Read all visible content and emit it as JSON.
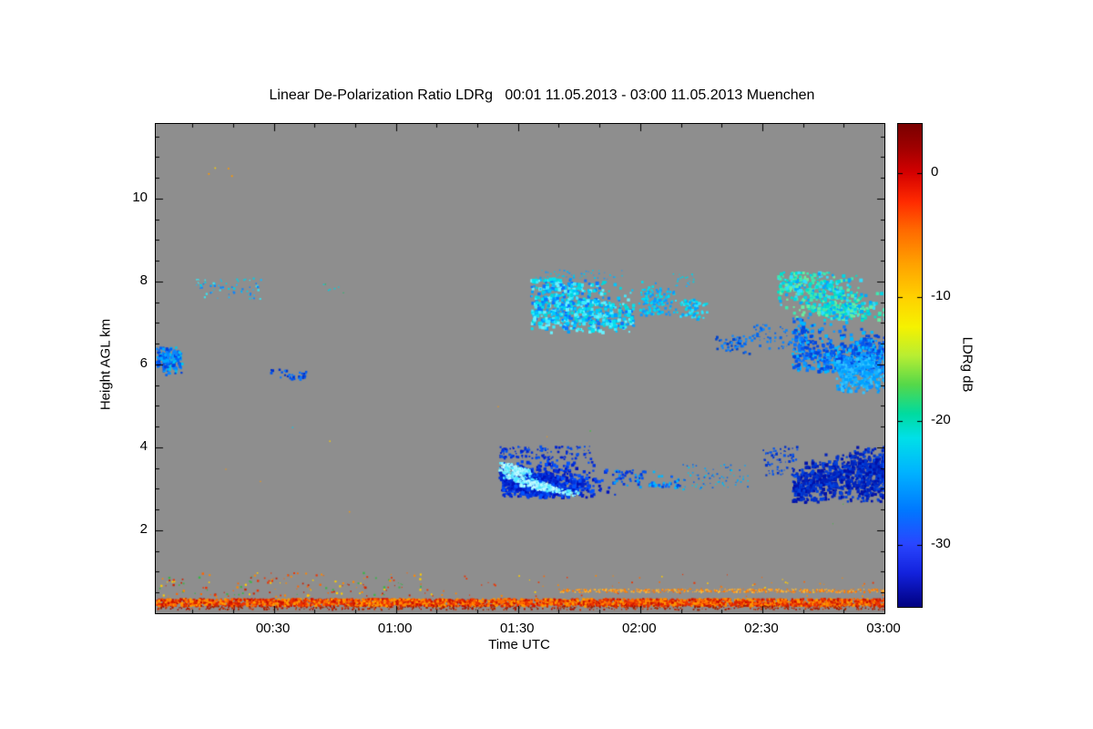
{
  "chart_data": {
    "type": "heatmap",
    "title": "Linear De-Polarization Ratio LDRg   00:01 11.05.2013 - 03:00 11.05.2013 Muenchen",
    "xlabel": "Time UTC",
    "ylabel": "Height AGL km",
    "x_range_hours": [
      0.0167,
      3.0
    ],
    "x_ticks": [
      {
        "label": "00:30",
        "hours": 0.5
      },
      {
        "label": "01:00",
        "hours": 1.0
      },
      {
        "label": "01:30",
        "hours": 1.5
      },
      {
        "label": "02:00",
        "hours": 2.0
      },
      {
        "label": "02:30",
        "hours": 2.5
      },
      {
        "label": "03:00",
        "hours": 3.0
      }
    ],
    "x_minor_step_hours": 0.1666667,
    "y_range_km": [
      0,
      11.8
    ],
    "y_ticks": [
      2,
      4,
      6,
      8,
      10
    ],
    "y_minor_step_km": 0.5,
    "background_color": "#8e8e8e",
    "frame_color": "#000000",
    "grid": false,
    "colorbar": {
      "label": "LDRg dB",
      "range_db": [
        -35,
        4
      ],
      "ticks_db": [
        0,
        -10,
        -20,
        -30
      ],
      "colormap": "jet",
      "gradient": [
        {
          "pos": 0.0,
          "color": "#7a0000"
        },
        {
          "pos": 0.05,
          "color": "#a00000"
        },
        {
          "pos": 0.1,
          "color": "#d40000"
        },
        {
          "pos": 0.16,
          "color": "#ff2a00"
        },
        {
          "pos": 0.22,
          "color": "#ff6a00"
        },
        {
          "pos": 0.29,
          "color": "#ffa200"
        },
        {
          "pos": 0.36,
          "color": "#ffd200"
        },
        {
          "pos": 0.42,
          "color": "#f6f200"
        },
        {
          "pos": 0.48,
          "color": "#b8ee33"
        },
        {
          "pos": 0.54,
          "color": "#55d84a"
        },
        {
          "pos": 0.6,
          "color": "#00dba0"
        },
        {
          "pos": 0.65,
          "color": "#00e0e8"
        },
        {
          "pos": 0.72,
          "color": "#00b4ff"
        },
        {
          "pos": 0.8,
          "color": "#0078ff"
        },
        {
          "pos": 0.87,
          "color": "#2a46ff"
        },
        {
          "pos": 0.93,
          "color": "#1322dd"
        },
        {
          "pos": 1.0,
          "color": "#000080"
        }
      ]
    },
    "features": [
      {
        "name": "left-edge-blue-cloud",
        "kind": "cloud",
        "t": [
          0.017,
          0.12
        ],
        "h": [
          5.75,
          6.45
        ],
        "n": 260,
        "dot": [
          2,
          3.5
        ],
        "clusters": 3,
        "spread": 9,
        "ex": 1.2,
        "colors": [
          "#0040dd",
          "#0063f5",
          "#0b86ff",
          "#00a8ff",
          "#00c8ee"
        ]
      },
      {
        "name": "cirrus-specks-0015",
        "kind": "speckle",
        "t": [
          0.18,
          0.45
        ],
        "h": [
          7.6,
          8.1
        ],
        "n": 70,
        "dot": [
          1,
          2.5
        ],
        "colors": [
          "#00d0e8",
          "#16b9ff",
          "#3ae2ee",
          "#0a84ff"
        ]
      },
      {
        "name": "high-altitude-specks",
        "kind": "speckle",
        "t": [
          0.2,
          0.38
        ],
        "h": [
          10.5,
          10.95
        ],
        "n": 4,
        "dot": [
          1.5,
          2.5
        ],
        "colors": [
          "#ff9900",
          "#ffd000",
          "#e84400"
        ]
      },
      {
        "name": "blue-streak-0033",
        "kind": "cloud",
        "t": [
          0.48,
          0.63
        ],
        "h": [
          5.62,
          5.9
        ],
        "n": 90,
        "dot": [
          2,
          3
        ],
        "clusters": 2,
        "spread": 10,
        "ex": 2.2,
        "colors": [
          "#0033cc",
          "#0055ee",
          "#0877ff"
        ]
      },
      {
        "name": "tiny-speck-0045",
        "kind": "speckle",
        "t": [
          0.7,
          0.8
        ],
        "h": [
          7.7,
          7.95
        ],
        "n": 7,
        "dot": [
          1,
          2
        ],
        "colors": [
          "#19c06a",
          "#00d0e0"
        ]
      },
      {
        "name": "main-cirrus-0135",
        "kind": "cloud",
        "t": [
          1.55,
          1.97
        ],
        "h": [
          6.8,
          8.1
        ],
        "n": 950,
        "dot": [
          2,
          4
        ],
        "clusters": 7,
        "spread": 15,
        "ex": 1.5,
        "colors": [
          "#00e2ef",
          "#3cecff",
          "#00c6ff",
          "#67f2ff",
          "#00a0ff",
          "#0b74ff",
          "#00d8dd"
        ]
      },
      {
        "name": "main-cirrus-top-fringe",
        "kind": "speckle",
        "t": [
          1.57,
          1.93
        ],
        "h": [
          8.05,
          8.3
        ],
        "n": 50,
        "dot": [
          1,
          2
        ],
        "colors": [
          "#00c8ee",
          "#0f9bff"
        ]
      },
      {
        "name": "cirrus-patch-0200",
        "kind": "cloud",
        "t": [
          1.99,
          2.14
        ],
        "h": [
          7.2,
          8.05
        ],
        "n": 170,
        "dot": [
          2,
          3
        ],
        "clusters": 4,
        "spread": 10,
        "ex": 1.2,
        "colors": [
          "#00ddee",
          "#00c4ff",
          "#0e97ff"
        ]
      },
      {
        "name": "cirrus-specks-0210",
        "kind": "speckle",
        "t": [
          2.13,
          2.22
        ],
        "h": [
          7.9,
          8.2
        ],
        "n": 18,
        "dot": [
          1,
          2
        ],
        "colors": [
          "#00d2e6",
          "#14b4ff"
        ]
      },
      {
        "name": "cirrus-patch-0213",
        "kind": "cloud",
        "t": [
          2.14,
          2.27
        ],
        "h": [
          7.1,
          7.6
        ],
        "n": 120,
        "dot": [
          2,
          3
        ],
        "clusters": 3,
        "spread": 9,
        "ex": 1.3,
        "colors": [
          "#00ddea",
          "#2ae4ff",
          "#00a4ff"
        ]
      },
      {
        "name": "blue-fringe-0220",
        "kind": "cloud",
        "t": [
          2.3,
          2.46
        ],
        "h": [
          6.28,
          6.72
        ],
        "n": 110,
        "dot": [
          2,
          3
        ],
        "clusters": 3,
        "spread": 10,
        "ex": 2.0,
        "colors": [
          "#0045cc",
          "#0768ee",
          "#0d88ff"
        ]
      },
      {
        "name": "right-cloud-top-cyan",
        "kind": "cloud",
        "t": [
          2.56,
          3.0
        ],
        "h": [
          7.1,
          8.25
        ],
        "n": 650,
        "dot": [
          2,
          4
        ],
        "clusters": 6,
        "spread": 14,
        "ex": 1.5,
        "colors": [
          "#00e2c8",
          "#3fe9b0",
          "#67eea2",
          "#00d5e5",
          "#2fe0ff",
          "#00a8ff"
        ]
      },
      {
        "name": "right-cloud-main-blue",
        "kind": "cloud",
        "t": [
          2.62,
          3.0
        ],
        "h": [
          5.85,
          7.15
        ],
        "n": 1050,
        "dot": [
          2,
          4
        ],
        "clusters": 7,
        "spread": 15,
        "ex": 1.4,
        "colors": [
          "#0557ee",
          "#0878ff",
          "#0f9aff",
          "#00bbff",
          "#0345dd"
        ]
      },
      {
        "name": "right-cloud-lower-lightblue",
        "kind": "cloud",
        "t": [
          2.8,
          3.0
        ],
        "h": [
          5.35,
          6.2
        ],
        "n": 420,
        "dot": [
          2,
          4
        ],
        "clusters": 4,
        "spread": 12,
        "ex": 1.3,
        "colors": [
          "#00a4ff",
          "#18b4ff",
          "#0c8cff",
          "#33c4ff"
        ]
      },
      {
        "name": "right-cloud-left-fringe",
        "kind": "speckle",
        "t": [
          2.46,
          2.62
        ],
        "h": [
          6.4,
          7.0
        ],
        "n": 55,
        "dot": [
          1,
          3
        ],
        "colors": [
          "#0667ee",
          "#0d88ff"
        ]
      },
      {
        "name": "midlevel-band-dark-blue",
        "kind": "cloud",
        "t": [
          1.42,
          1.92
        ],
        "h": [
          2.82,
          3.72
        ],
        "n": 950,
        "dot": [
          2,
          4
        ],
        "clusters": 8,
        "spread": 14,
        "ex": 1.7,
        "colors": [
          "#0223cc",
          "#0333dd",
          "#0443ee",
          "#0353ff",
          "#0113bb"
        ]
      },
      {
        "name": "midlevel-band-top-fringe",
        "kind": "speckle",
        "t": [
          1.42,
          1.8
        ],
        "h": [
          3.72,
          4.05
        ],
        "n": 130,
        "dot": [
          1,
          3
        ],
        "colors": [
          "#0333dd",
          "#0553ee",
          "#0223cc"
        ]
      },
      {
        "name": "midlevel-bright-cyan-streaks",
        "kind": "streak",
        "width": 5,
        "n": 460,
        "colors": [
          "#7df2ff",
          "#a9f7ff",
          "#4fe8ff",
          "#c6fbff"
        ],
        "segs": [
          [
            1.43,
            3.5,
            1.62,
            3.06
          ],
          [
            1.45,
            3.32,
            1.66,
            2.96
          ],
          [
            1.5,
            3.16,
            1.73,
            2.9
          ],
          [
            1.44,
            3.6,
            1.54,
            3.42
          ]
        ]
      },
      {
        "name": "midlevel-tail",
        "kind": "cloud",
        "t": [
          1.88,
          2.02
        ],
        "h": [
          3.0,
          3.48
        ],
        "n": 110,
        "dot": [
          2,
          3
        ],
        "clusters": 3,
        "spread": 9,
        "ex": 1.8,
        "colors": [
          "#0334dd",
          "#0556ee",
          "#00a2ff"
        ]
      },
      {
        "name": "midlevel-patch-0205",
        "kind": "cloud",
        "t": [
          2.03,
          2.16
        ],
        "h": [
          3.05,
          3.46
        ],
        "n": 100,
        "dot": [
          2,
          3
        ],
        "clusters": 3,
        "spread": 9,
        "ex": 1.8,
        "colors": [
          "#0445dd",
          "#0767ff",
          "#00b6ff"
        ]
      },
      {
        "name": "midlevel-specks-0215",
        "kind": "speckle",
        "t": [
          2.17,
          2.44
        ],
        "h": [
          3.0,
          3.6
        ],
        "n": 80,
        "dot": [
          1,
          2
        ],
        "colors": [
          "#0667ee",
          "#00a6ff",
          "#00c8ee"
        ]
      },
      {
        "name": "right-midlevel-dark-mass",
        "kind": "cloud",
        "t": [
          2.62,
          3.0
        ],
        "h": [
          2.7,
          4.05
        ],
        "n": 1250,
        "dot": [
          2,
          4
        ],
        "clusters": 7,
        "spread": 14,
        "ex": 1.4,
        "colors": [
          "#0222bb",
          "#0233cc",
          "#0112aa",
          "#0343dd"
        ]
      },
      {
        "name": "right-midlevel-left-fringe",
        "kind": "speckle",
        "t": [
          2.5,
          2.64
        ],
        "h": [
          3.3,
          4.05
        ],
        "n": 70,
        "dot": [
          1,
          3
        ],
        "colors": [
          "#0233cc",
          "#0455ee"
        ]
      },
      {
        "name": "aerosol-dots-left",
        "kind": "speckle",
        "t": [
          0.03,
          1.1
        ],
        "h": [
          0.42,
          1.0
        ],
        "n": 150,
        "dot": [
          1,
          2.5
        ],
        "colors": [
          "#ff8800",
          "#ee3300",
          "#ffcc00",
          "#cc2200",
          "#3cb44a",
          "#ff6600"
        ]
      },
      {
        "name": "aerosol-dots-right",
        "kind": "speckle",
        "t": [
          1.1,
          3.0
        ],
        "h": [
          0.42,
          0.95
        ],
        "n": 80,
        "dot": [
          1,
          2
        ],
        "colors": [
          "#ff8800",
          "#ee3300",
          "#ffcc00",
          "#ff6600"
        ]
      },
      {
        "name": "sparse-isolated-pixels",
        "kind": "speckle",
        "t": [
          0.05,
          2.95
        ],
        "h": [
          1.0,
          5.2
        ],
        "n": 10,
        "dot": [
          1,
          1.5
        ],
        "colors": [
          "#ff9900",
          "#00ccee",
          "#ffd000",
          "#44bb44"
        ]
      },
      {
        "name": "thin-orange-layer-line",
        "kind": "speckle",
        "t": [
          1.66,
          3.0
        ],
        "h": [
          0.52,
          0.6
        ],
        "n": 430,
        "dot": [
          1,
          2
        ],
        "colors": [
          "#ff9922",
          "#ff7700",
          "#ffbb33"
        ]
      },
      {
        "name": "ground-return-orange-line",
        "kind": "speckle",
        "t": [
          0.017,
          3.0
        ],
        "h": [
          0.2,
          0.37
        ],
        "n": 2800,
        "dot": [
          2,
          3
        ],
        "colors": [
          "#ee3300",
          "#ff6600",
          "#ff8800",
          "#cc1100",
          "#ff9900",
          "#dd2200"
        ]
      },
      {
        "name": "ground-return-dark-base",
        "kind": "speckle",
        "t": [
          0.017,
          3.0
        ],
        "h": [
          0.1,
          0.2
        ],
        "n": 600,
        "dot": [
          1,
          2
        ],
        "colors": [
          "#aa1100",
          "#cc3300",
          "#992200"
        ]
      }
    ]
  }
}
